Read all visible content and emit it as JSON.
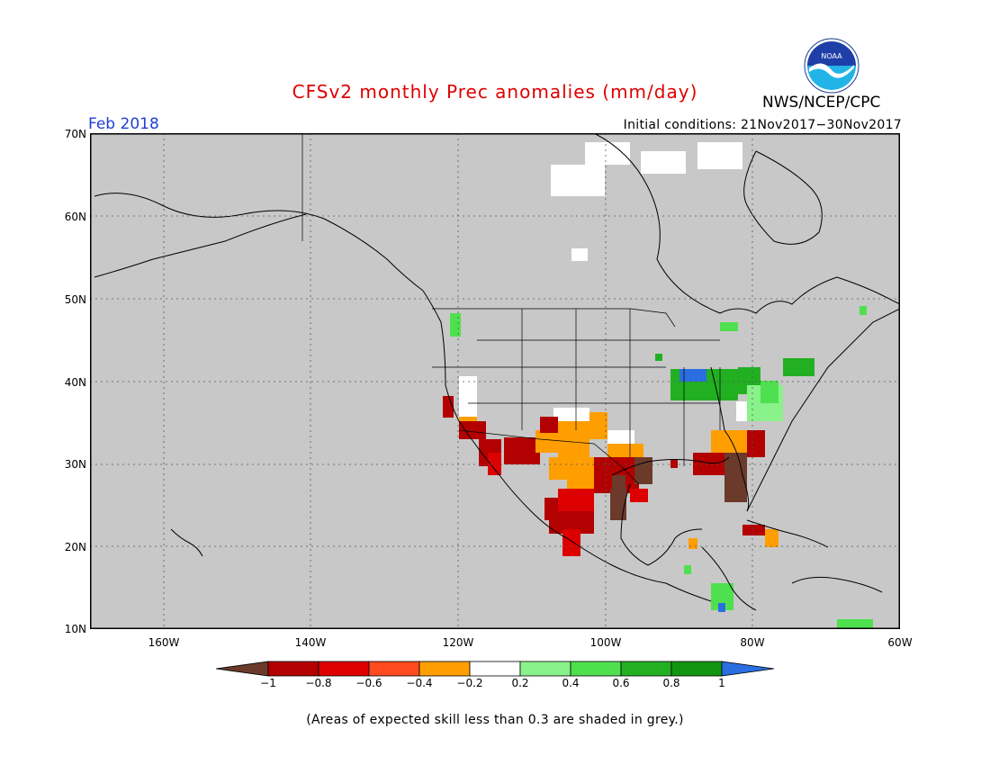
{
  "title": "CFSv2 monthly Prec anomalies (mm/day)",
  "valid_period": "Feb 2018",
  "organization": "NWS/NCEP/CPC",
  "logo_text": "NOAA",
  "initial_conditions": "Initial conditions: 21Nov2017−30Nov2017",
  "footnote": "(Areas of expected skill less than 0.3 are shaded in grey.)",
  "map": {
    "lat_labels": [
      "70N",
      "60N",
      "50N",
      "40N",
      "30N",
      "20N",
      "10N"
    ],
    "lon_labels": [
      "160W",
      "140W",
      "120W",
      "100W",
      "80W",
      "60W"
    ],
    "lat_range": [
      10,
      70
    ],
    "lon_range": [
      -170,
      -60
    ],
    "grid": "dotted",
    "background_color": "#c8c8c8"
  },
  "colorbar": {
    "labels": [
      "−1",
      "−0.8",
      "−0.6",
      "−0.4",
      "−0.2",
      "0.2",
      "0.4",
      "0.6",
      "0.8",
      "1"
    ],
    "colors": [
      "#6b3a2a",
      "#b30000",
      "#dd0000",
      "#ff4b1f",
      "#ff9e00",
      "#ffffff",
      "#8af28a",
      "#4fe04f",
      "#22b022",
      "#129612",
      "#2a6ee0"
    ]
  }
}
